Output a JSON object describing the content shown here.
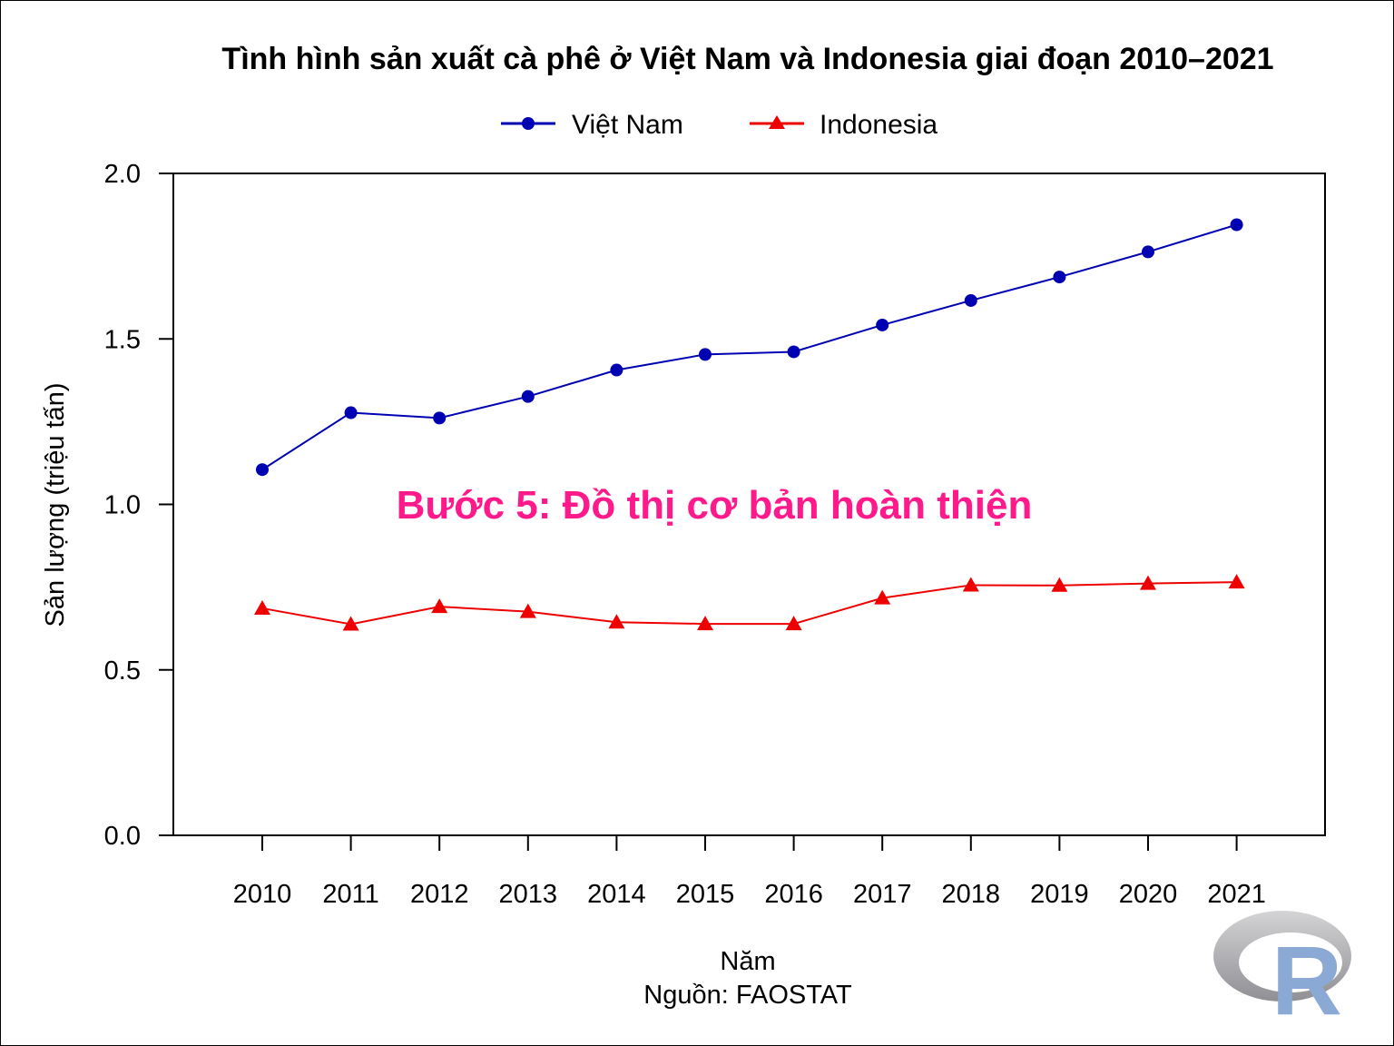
{
  "chart_data": {
    "type": "line",
    "title": "Tình hình sản xuất cà phê ở Việt Nam và Indonesia giai đoạn 2010–2021",
    "xlabel": "Năm",
    "source": "Nguồn: FAOSTAT",
    "ylabel": "Sản lượng (triệu tấn)",
    "annotation": "Bước 5: Đồ thị cơ bản hoàn thiện",
    "x": [
      "2010",
      "2011",
      "2012",
      "2013",
      "2014",
      "2015",
      "2016",
      "2017",
      "2018",
      "2019",
      "2020",
      "2021"
    ],
    "ylim": [
      0,
      2.0
    ],
    "yticks": [
      "0.0",
      "0.5",
      "1.0",
      "1.5",
      "2.0"
    ],
    "grid": false,
    "legend_position": "top-center",
    "series": [
      {
        "name": "Việt Nam",
        "color": "#0000b3",
        "marker": "circle",
        "values": [
          1.105,
          1.277,
          1.261,
          1.326,
          1.406,
          1.453,
          1.461,
          1.542,
          1.616,
          1.687,
          1.763,
          1.845
        ]
      },
      {
        "name": "Indonesia",
        "color": "#ee0000",
        "marker": "triangle",
        "values": [
          0.686,
          0.638,
          0.691,
          0.676,
          0.644,
          0.639,
          0.639,
          0.717,
          0.756,
          0.755,
          0.761,
          0.765
        ]
      }
    ]
  },
  "logo": {
    "icon": "r-logo-icon",
    "letter": "R",
    "ring_color": "#b0b0b0",
    "letter_color": "#8aa9d4"
  }
}
